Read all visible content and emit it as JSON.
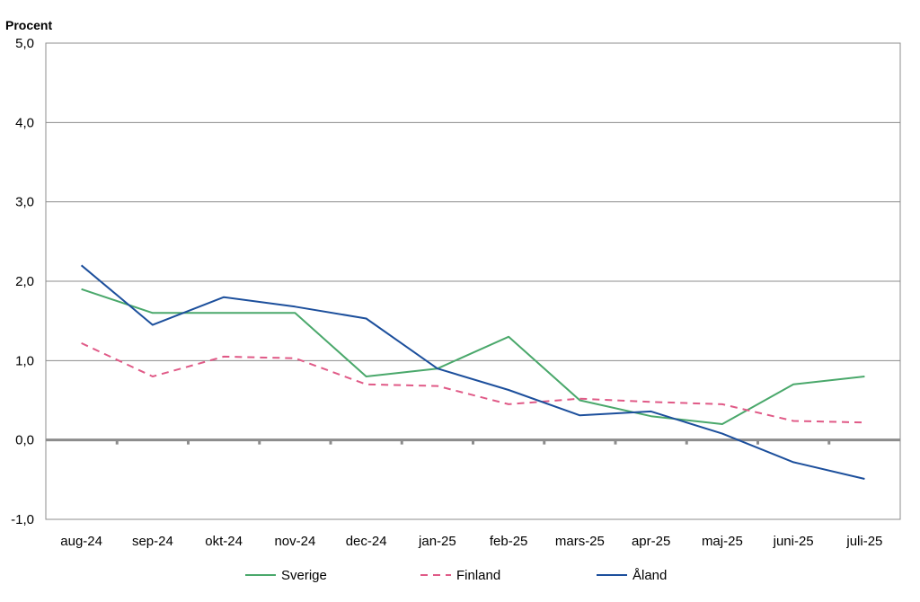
{
  "chart_data": {
    "type": "line",
    "ylabel": "Procent",
    "xlabel": "",
    "title": "",
    "ylim": [
      -1.0,
      5.0
    ],
    "y_ticks": [
      -1.0,
      0.0,
      1.0,
      2.0,
      3.0,
      4.0,
      5.0
    ],
    "y_tick_labels": [
      "-1,0",
      "0,0",
      "1,0",
      "2,0",
      "3,0",
      "4,0",
      "5,0"
    ],
    "grid": true,
    "legend_position": "bottom",
    "categories": [
      "aug-24",
      "sep-24",
      "okt-24",
      "nov-24",
      "dec-24",
      "jan-25",
      "feb-25",
      "mars-25",
      "apr-25",
      "maj-25",
      "juni-25",
      "juli-25"
    ],
    "series": [
      {
        "name": "Sverige",
        "color": "#4aa86b",
        "dash": "solid",
        "values": [
          1.9,
          1.6,
          1.6,
          1.6,
          0.8,
          0.9,
          1.3,
          0.5,
          0.3,
          0.2,
          0.7,
          0.8
        ]
      },
      {
        "name": "Finland",
        "color": "#e05a87",
        "dash": "dashed",
        "values": [
          1.22,
          0.8,
          1.05,
          1.03,
          0.7,
          0.68,
          0.45,
          0.52,
          0.48,
          0.45,
          0.24,
          0.22
        ]
      },
      {
        "name": "Åland",
        "color": "#1c4f9c",
        "dash": "solid",
        "values": [
          2.2,
          1.45,
          1.8,
          1.68,
          1.53,
          0.9,
          0.63,
          0.31,
          0.36,
          0.08,
          -0.28,
          -0.49
        ]
      }
    ]
  }
}
